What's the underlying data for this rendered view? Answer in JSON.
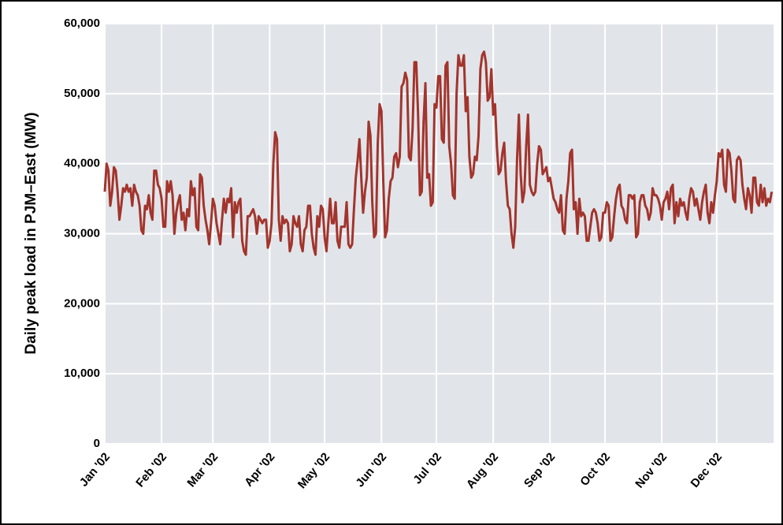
{
  "chart_data": {
    "type": "line",
    "y_label": "Daily peak load in PJM–East (MW)",
    "xlim": [
      0,
      365
    ],
    "xticks": [
      {
        "value": 0,
        "label": "Jan '02"
      },
      {
        "value": 31,
        "label": "Feb '02"
      },
      {
        "value": 59,
        "label": "Mar '02"
      },
      {
        "value": 90,
        "label": "Apr '02"
      },
      {
        "value": 120,
        "label": "May '02"
      },
      {
        "value": 151,
        "label": "Jun '02"
      },
      {
        "value": 181,
        "label": "Jul '02"
      },
      {
        "value": 212,
        "label": "Aug '02"
      },
      {
        "value": 243,
        "label": "Sep '02"
      },
      {
        "value": 273,
        "label": "Oct '02"
      },
      {
        "value": 304,
        "label": "Nov '02"
      },
      {
        "value": 334,
        "label": "Dec '02"
      }
    ],
    "ylim": [
      0,
      60000
    ],
    "yticks": [
      0,
      {
        "value": 10000,
        "label": "10,000"
      },
      {
        "value": 20000,
        "label": "20,000"
      },
      {
        "value": 30000,
        "label": "30,000"
      },
      {
        "value": 40000,
        "label": "40,000"
      },
      {
        "value": 50000,
        "label": "50,000"
      },
      {
        "value": 60000,
        "label": "60,000"
      }
    ],
    "grid": true,
    "series": [
      {
        "color": "#a3342c",
        "values": [
          36000,
          40000,
          39000,
          34000,
          36000,
          39500,
          39000,
          36000,
          32000,
          34000,
          36500,
          36000,
          37000,
          36000,
          36500,
          34000,
          37000,
          36000,
          35500,
          34000,
          30500,
          30000,
          34000,
          33500,
          35500,
          33000,
          32000,
          39000,
          39000,
          37000,
          36500,
          35000,
          31000,
          31000,
          37500,
          36000,
          37500,
          35500,
          30000,
          33000,
          34500,
          35500,
          32000,
          33000,
          30500,
          33500,
          32500,
          37500,
          35500,
          36500,
          31000,
          30500,
          38500,
          38000,
          34000,
          32000,
          30500,
          28500,
          31500,
          35000,
          34000,
          31500,
          30000,
          28500,
          32000,
          35000,
          33000,
          35000,
          34500,
          36500,
          29500,
          34500,
          33000,
          34500,
          35000,
          29000,
          27500,
          27000,
          32500,
          32500,
          33000,
          33500,
          32500,
          30000,
          32500,
          32000,
          31500,
          32000,
          32000,
          28000,
          29000,
          31500,
          40000,
          44500,
          43500,
          32000,
          29000,
          32500,
          31500,
          32000,
          31500,
          27500,
          28500,
          32500,
          31500,
          31000,
          32500,
          28500,
          27500,
          30500,
          31000,
          34000,
          34000,
          30000,
          28000,
          27000,
          32500,
          31000,
          34000,
          33500,
          29500,
          27500,
          31500,
          35000,
          31500,
          31500,
          34500,
          29000,
          28000,
          31000,
          31000,
          31000,
          34500,
          28500,
          28000,
          28500,
          33500,
          38000,
          40500,
          43500,
          38000,
          33000,
          36000,
          38000,
          46000,
          44000,
          34500,
          29500,
          30000,
          43000,
          48500,
          47500,
          37500,
          29500,
          30500,
          35000,
          37500,
          38000,
          41000,
          41500,
          39500,
          41000,
          51000,
          51500,
          53000,
          52000,
          41000,
          40500,
          45000,
          54500,
          54500,
          47000,
          35500,
          36000,
          46000,
          51500,
          38000,
          38500,
          34000,
          34500,
          48500,
          48000,
          52500,
          52500,
          43500,
          43000,
          54000,
          54500,
          42500,
          40000,
          35500,
          35000,
          50000,
          55500,
          54000,
          54000,
          55500,
          47500,
          49500,
          41000,
          38000,
          38500,
          41000,
          40500,
          44000,
          53500,
          55500,
          56000,
          54500,
          49000,
          49500,
          53500,
          47000,
          48500,
          42500,
          38500,
          39000,
          41500,
          43000,
          37500,
          34000,
          33500,
          30000,
          28000,
          31000,
          40500,
          47000,
          38500,
          34500,
          36000,
          42500,
          47000,
          37000,
          36000,
          35500,
          36000,
          40000,
          42500,
          42000,
          38500,
          39000,
          39500,
          37500,
          38000,
          36500,
          35000,
          34500,
          33500,
          33000,
          35500,
          30500,
          30000,
          35000,
          37500,
          41500,
          42000,
          33500,
          34500,
          30000,
          35000,
          32500,
          33000,
          32500,
          29000,
          29000,
          31000,
          33000,
          33500,
          33000,
          31500,
          29000,
          29500,
          33000,
          33000,
          34500,
          34000,
          29000,
          29500,
          32500,
          35000,
          36500,
          37000,
          34000,
          33500,
          32000,
          31500,
          35500,
          35500,
          35000,
          35500,
          29500,
          30000,
          34500,
          35500,
          35500,
          34000,
          33500,
          32000,
          33000,
          36500,
          35500,
          35500,
          35000,
          34000,
          32000,
          34500,
          35000,
          36000,
          33500,
          36500,
          37000,
          31500,
          34500,
          32500,
          35000,
          34000,
          34500,
          33000,
          32000,
          35000,
          36500,
          36000,
          34000,
          35000,
          33500,
          32000,
          34500,
          36000,
          37000,
          33000,
          31500,
          34500,
          33000,
          35500,
          37500,
          41500,
          41000,
          42000,
          37000,
          36000,
          42000,
          41500,
          39000,
          35000,
          34500,
          40500,
          41000,
          40500,
          37000,
          35000,
          33500,
          36500,
          35500,
          33000,
          38000,
          38000,
          34500,
          34000,
          37000,
          34500,
          36500,
          34000,
          35000,
          34500,
          36000
        ]
      }
    ]
  }
}
